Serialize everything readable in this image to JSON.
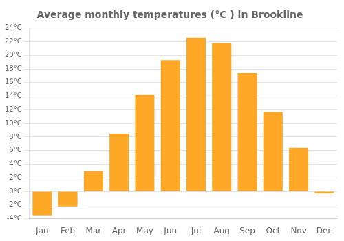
{
  "chart_data": {
    "type": "bar",
    "title": "Average monthly temperatures (°C ) in Brookline",
    "categories": [
      "Jan",
      "Feb",
      "Mar",
      "Apr",
      "May",
      "Jun",
      "Jul",
      "Aug",
      "Sep",
      "Oct",
      "Nov",
      "Dec"
    ],
    "values": [
      -3.5,
      -2.2,
      3.0,
      8.5,
      14.2,
      19.3,
      22.6,
      21.8,
      17.4,
      11.7,
      6.4,
      -0.3
    ],
    "color": "#FFA726",
    "ylim": [
      -4,
      24
    ],
    "yticks": [
      {
        "value": -4,
        "label": "-4°C"
      },
      {
        "value": -2,
        "label": "-2°C"
      },
      {
        "value": 0,
        "label": "0°C"
      },
      {
        "value": 2,
        "label": "2°C"
      },
      {
        "value": 4,
        "label": "4°C"
      },
      {
        "value": 6,
        "label": "6°C"
      },
      {
        "value": 8,
        "label": "8°C"
      },
      {
        "value": 10,
        "label": "10°C"
      },
      {
        "value": 12,
        "label": "12°C"
      },
      {
        "value": 14,
        "label": "14°C"
      },
      {
        "value": 16,
        "label": "16°C"
      },
      {
        "value": 18,
        "label": "18°C"
      },
      {
        "value": 20,
        "label": "20°C"
      },
      {
        "value": 22,
        "label": "22°C"
      },
      {
        "value": 24,
        "label": "24°C"
      }
    ],
    "grid": true
  }
}
